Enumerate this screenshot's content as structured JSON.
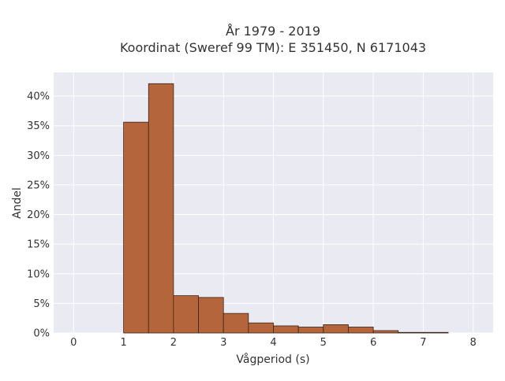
{
  "chart_data": {
    "type": "bar",
    "title_lines": [
      "År 1979 - 2019",
      "Koordinat (Sweref 99 TM): E 351450, N 6171043"
    ],
    "xlabel": "Vågperiod (s)",
    "ylabel": "Andel",
    "xlim": [
      -0.4,
      8.4
    ],
    "ylim": [
      0,
      0.44
    ],
    "x_ticks": [
      0,
      1,
      2,
      3,
      4,
      5,
      6,
      7,
      8
    ],
    "x_tick_labels": [
      "0",
      "1",
      "2",
      "3",
      "4",
      "5",
      "6",
      "7",
      "8"
    ],
    "y_ticks": [
      0,
      0.05,
      0.1,
      0.15,
      0.2,
      0.25,
      0.3,
      0.35,
      0.4
    ],
    "y_tick_labels": [
      "0%",
      "5%",
      "10%",
      "15%",
      "20%",
      "25%",
      "30%",
      "35%",
      "40%"
    ],
    "bin_width": 0.5,
    "bins": [
      {
        "start": 1.0,
        "end": 1.5,
        "value": 0.356
      },
      {
        "start": 1.5,
        "end": 2.0,
        "value": 0.421
      },
      {
        "start": 2.0,
        "end": 2.5,
        "value": 0.063
      },
      {
        "start": 2.5,
        "end": 3.0,
        "value": 0.06
      },
      {
        "start": 3.0,
        "end": 3.5,
        "value": 0.033
      },
      {
        "start": 3.5,
        "end": 4.0,
        "value": 0.017
      },
      {
        "start": 4.0,
        "end": 4.5,
        "value": 0.012
      },
      {
        "start": 4.5,
        "end": 5.0,
        "value": 0.01
      },
      {
        "start": 5.0,
        "end": 5.5,
        "value": 0.014
      },
      {
        "start": 5.5,
        "end": 6.0,
        "value": 0.01
      },
      {
        "start": 6.0,
        "end": 6.5,
        "value": 0.004
      },
      {
        "start": 6.5,
        "end": 7.0,
        "value": 0.001
      },
      {
        "start": 7.0,
        "end": 7.5,
        "value": 0.001
      }
    ],
    "bar_color": "#b5653b",
    "bar_edge_color": "#3a2418",
    "background_color": "#eaeaf2",
    "grid": true,
    "grid_color": "#ffffff",
    "legend": false
  }
}
